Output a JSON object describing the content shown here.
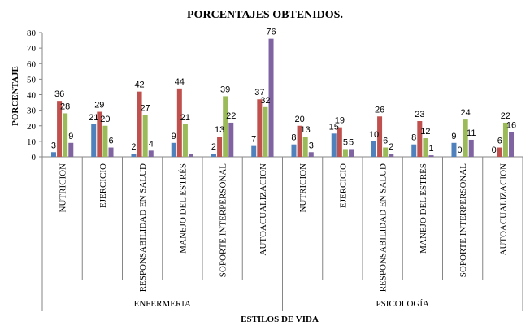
{
  "chart_data": {
    "type": "bar",
    "title": "PORCENTAJES OBTENIDOS.",
    "xlabel": "ESTILOS DE VIDA",
    "ylabel": "PORCENTAJE",
    "ylim": [
      0,
      80
    ],
    "yticks": [
      0,
      10,
      20,
      30,
      40,
      50,
      60,
      70,
      80
    ],
    "grid": false,
    "legend": "none",
    "groups": [
      {
        "label": "ENFERMERIA",
        "categories": [
          "NUTRICION",
          "EJERCICIO",
          "RESPONSABILIDAD EN SALUD",
          "MANEJO DEL ESTRÉS",
          "SOPORTE INTERPERSONAL",
          "AUTOACUALIZACION"
        ]
      },
      {
        "label": "PSICOLOGÍA",
        "categories": [
          "NUTRICION",
          "EJERCICIO",
          "RESPONSABILIDAD EN SALUD",
          "MANEJO DEL ESTRÉS",
          "SOPORTE INTERPERSONAL",
          "AUTOACUALIZACION"
        ]
      }
    ],
    "series": [
      {
        "color": "#4F81BD",
        "values": [
          3,
          21,
          2,
          9,
          2,
          7,
          8,
          15,
          10,
          8,
          9,
          0
        ]
      },
      {
        "color": "#C0504D",
        "values": [
          36,
          29,
          42,
          44,
          13,
          37,
          20,
          19,
          26,
          23,
          0,
          6
        ]
      },
      {
        "color": "#9BBB59",
        "values": [
          28,
          20,
          27,
          21,
          39,
          32,
          13,
          5,
          6,
          12,
          24,
          22
        ]
      },
      {
        "color": "#8064A2",
        "values": [
          9,
          6,
          4,
          2,
          22,
          76,
          3,
          5,
          2,
          1,
          11,
          16
        ]
      }
    ],
    "data_labels": [
      [
        "3",
        "21",
        "2",
        "9",
        "2",
        "7",
        "8",
        "15",
        "10",
        "8",
        "9",
        "0"
      ],
      [
        "36",
        "29",
        "42",
        "44",
        "13",
        "37",
        "20",
        "19",
        "26",
        "23",
        "0",
        "6"
      ],
      [
        "28",
        "20",
        "27",
        "21",
        "39",
        "32",
        "13",
        "5",
        "6",
        "12",
        "24",
        "22"
      ],
      [
        "9",
        "6",
        "4",
        "",
        "22",
        "76",
        "3",
        "5",
        "2",
        "1",
        "11",
        "16"
      ]
    ]
  }
}
